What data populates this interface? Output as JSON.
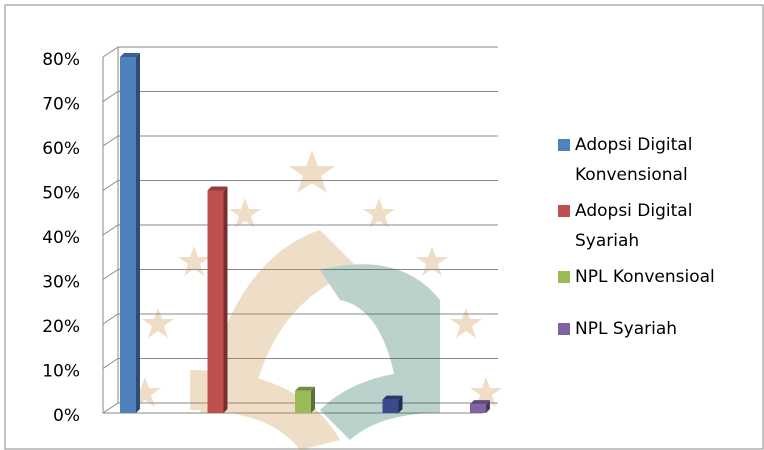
{
  "chart_data": {
    "type": "bar3d",
    "series": [
      {
        "name": "Adopsi Digital Konvensional",
        "color": "#4f81bd",
        "values": [
          80
        ]
      },
      {
        "name": "Adopsi Digital Syariah",
        "color": "#c0504d",
        "values": [
          50
        ]
      },
      {
        "name": "NPL Konvensioal",
        "color": "#9bbb59",
        "values": [
          5
        ]
      },
      {
        "color": "#3b4a8c",
        "values": [
          3
        ]
      },
      {
        "name": "NPL Syariah",
        "color": "#8064a2",
        "values": [
          2
        ]
      }
    ],
    "ylim": [
      0,
      80
    ],
    "yticks": [
      {
        "value": 0,
        "label": "0%"
      },
      {
        "value": 10,
        "label": "10%"
      },
      {
        "value": 20,
        "label": "20%"
      },
      {
        "value": 30,
        "label": "30%"
      },
      {
        "value": 40,
        "label": "40%"
      },
      {
        "value": 50,
        "label": "50%"
      },
      {
        "value": 60,
        "label": "60%"
      },
      {
        "value": 70,
        "label": "70%"
      },
      {
        "value": 80,
        "label": "80%"
      }
    ],
    "grid": true,
    "legend": "right"
  }
}
